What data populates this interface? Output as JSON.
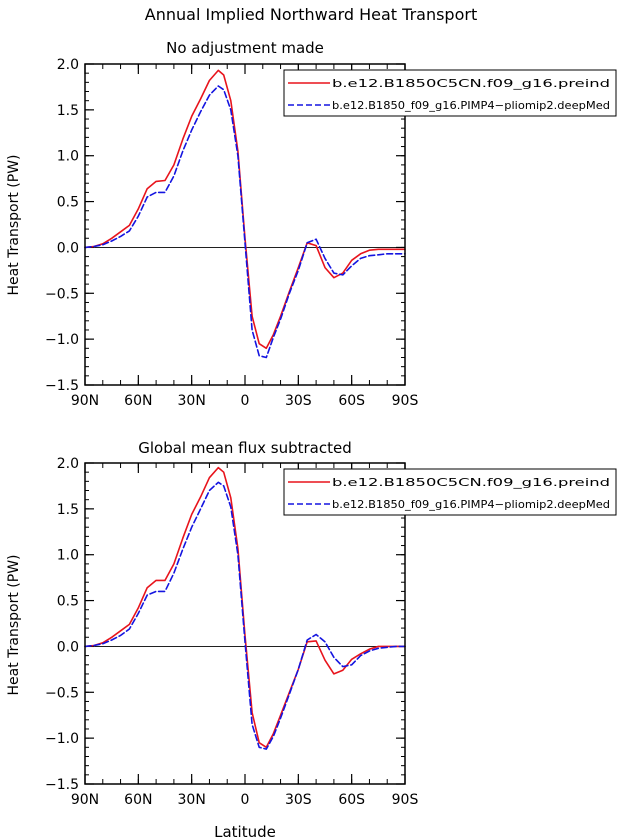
{
  "figure_title": "Annual Implied Northward Heat Transport",
  "x_axis_label": "Latitude",
  "colors": {
    "series_a": "#e8141c",
    "series_b": "#1414e0",
    "zero_line": "#000000"
  },
  "chart_data": [
    {
      "type": "line",
      "title": "No adjustment made",
      "xlabel": "",
      "ylabel": "Heat Transport (PW)",
      "xlim": [
        -90,
        90
      ],
      "ylim": [
        -1.5,
        2.0
      ],
      "x_ticks": [
        -90,
        -60,
        -30,
        0,
        30,
        60,
        90
      ],
      "x_tick_labels": [
        "90N",
        "60N",
        "30N",
        "0",
        "30S",
        "60S",
        "90S"
      ],
      "y_ticks": [
        -1.5,
        -1.0,
        -0.5,
        0.0,
        0.5,
        1.0,
        1.5,
        2.0
      ],
      "y_tick_labels": [
        "−1.5",
        "−1.0",
        "−0.5",
        "0.0",
        "0.5",
        "1.0",
        "1.5",
        "2.0"
      ],
      "zero_line": 0,
      "legend_position": "top-right",
      "series": [
        {
          "name": "b.e12.B1850C5CN.f09_g16.preind",
          "style": "solid",
          "x": [
            -90,
            -85,
            -80,
            -75,
            -70,
            -65,
            -60,
            -55,
            -50,
            -45,
            -40,
            -35,
            -30,
            -25,
            -20,
            -15,
            -12,
            -8,
            -4,
            0,
            4,
            8,
            12,
            16,
            20,
            25,
            30,
            35,
            40,
            45,
            50,
            55,
            60,
            65,
            70,
            75,
            80,
            85,
            90
          ],
          "y": [
            0.0,
            0.01,
            0.04,
            0.1,
            0.17,
            0.24,
            0.42,
            0.64,
            0.72,
            0.73,
            0.9,
            1.18,
            1.43,
            1.62,
            1.82,
            1.93,
            1.88,
            1.6,
            1.05,
            0.1,
            -0.75,
            -1.05,
            -1.1,
            -0.95,
            -0.75,
            -0.48,
            -0.22,
            0.05,
            0.02,
            -0.22,
            -0.33,
            -0.28,
            -0.14,
            -0.07,
            -0.03,
            -0.02,
            -0.02,
            -0.02,
            -0.02
          ]
        },
        {
          "name": "b.e12.B1850_f09_g16.PIMP4−pliomip2.deepMed",
          "style": "dashed",
          "x": [
            -90,
            -85,
            -80,
            -75,
            -70,
            -65,
            -60,
            -55,
            -50,
            -45,
            -40,
            -35,
            -30,
            -25,
            -20,
            -15,
            -12,
            -8,
            -4,
            0,
            4,
            8,
            12,
            16,
            20,
            25,
            30,
            35,
            40,
            45,
            50,
            55,
            60,
            65,
            70,
            75,
            80,
            85,
            90
          ],
          "y": [
            0.0,
            0.01,
            0.03,
            0.07,
            0.12,
            0.18,
            0.34,
            0.55,
            0.6,
            0.6,
            0.78,
            1.05,
            1.28,
            1.48,
            1.66,
            1.76,
            1.72,
            1.5,
            1.0,
            0.05,
            -0.9,
            -1.18,
            -1.2,
            -0.98,
            -0.78,
            -0.5,
            -0.25,
            0.05,
            0.09,
            -0.12,
            -0.28,
            -0.3,
            -0.2,
            -0.12,
            -0.09,
            -0.08,
            -0.07,
            -0.07,
            -0.07
          ]
        }
      ]
    },
    {
      "type": "line",
      "title": "Global mean flux subtracted",
      "xlabel": "Latitude",
      "ylabel": "Heat Transport (PW)",
      "xlim": [
        -90,
        90
      ],
      "ylim": [
        -1.5,
        2.0
      ],
      "x_ticks": [
        -90,
        -60,
        -30,
        0,
        30,
        60,
        90
      ],
      "x_tick_labels": [
        "90N",
        "60N",
        "30N",
        "0",
        "30S",
        "60S",
        "90S"
      ],
      "y_ticks": [
        -1.5,
        -1.0,
        -0.5,
        0.0,
        0.5,
        1.0,
        1.5,
        2.0
      ],
      "y_tick_labels": [
        "−1.5",
        "−1.0",
        "−0.5",
        "0.0",
        "0.5",
        "1.0",
        "1.5",
        "2.0"
      ],
      "zero_line": 0,
      "legend_position": "top-right",
      "series": [
        {
          "name": "b.e12.B1850C5CN.f09_g16.preind",
          "style": "solid",
          "x": [
            -90,
            -85,
            -80,
            -75,
            -70,
            -65,
            -60,
            -55,
            -50,
            -45,
            -40,
            -35,
            -30,
            -25,
            -20,
            -15,
            -12,
            -8,
            -4,
            0,
            4,
            8,
            12,
            16,
            20,
            25,
            30,
            35,
            40,
            45,
            50,
            55,
            60,
            65,
            70,
            75,
            80,
            85,
            90
          ],
          "y": [
            0.0,
            0.01,
            0.04,
            0.1,
            0.17,
            0.24,
            0.42,
            0.64,
            0.72,
            0.72,
            0.9,
            1.18,
            1.44,
            1.63,
            1.84,
            1.95,
            1.9,
            1.62,
            1.07,
            0.12,
            -0.72,
            -1.05,
            -1.1,
            -0.95,
            -0.75,
            -0.5,
            -0.25,
            0.05,
            0.06,
            -0.15,
            -0.3,
            -0.26,
            -0.14,
            -0.08,
            -0.03,
            0.0,
            0.0,
            0.0,
            0.0
          ]
        },
        {
          "name": "b.e12.B1850_f09_g16.PIMP4−pliomip2.deepMed",
          "style": "dashed",
          "x": [
            -90,
            -85,
            -80,
            -75,
            -70,
            -65,
            -60,
            -55,
            -50,
            -45,
            -40,
            -35,
            -30,
            -25,
            -20,
            -15,
            -12,
            -8,
            -4,
            0,
            4,
            8,
            12,
            16,
            20,
            25,
            30,
            35,
            40,
            45,
            50,
            55,
            60,
            65,
            70,
            75,
            80,
            85,
            90
          ],
          "y": [
            0.0,
            0.01,
            0.03,
            0.07,
            0.12,
            0.19,
            0.36,
            0.56,
            0.6,
            0.6,
            0.8,
            1.06,
            1.3,
            1.5,
            1.7,
            1.79,
            1.75,
            1.52,
            1.0,
            0.05,
            -0.85,
            -1.1,
            -1.12,
            -0.98,
            -0.78,
            -0.52,
            -0.25,
            0.07,
            0.13,
            0.05,
            -0.12,
            -0.22,
            -0.2,
            -0.1,
            -0.05,
            -0.02,
            -0.01,
            0.0,
            0.0
          ]
        }
      ]
    }
  ]
}
